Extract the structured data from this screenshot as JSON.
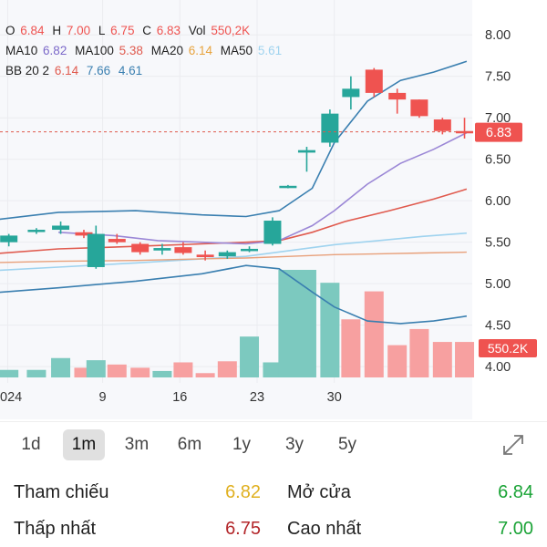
{
  "legend": {
    "ohlc": [
      {
        "label": "O",
        "value": "6.84"
      },
      {
        "label": "H",
        "value": "7.00"
      },
      {
        "label": "L",
        "value": "6.75"
      },
      {
        "label": "C",
        "value": "6.83"
      },
      {
        "label": "Vol",
        "value": "550,2K"
      }
    ],
    "ma": [
      {
        "label": "MA10",
        "value": "6.82",
        "color": "#7b68c9"
      },
      {
        "label": "MA100",
        "value": "5.38",
        "color": "#e05a4e"
      },
      {
        "label": "MA20",
        "value": "6.14",
        "color": "#e8a33d"
      },
      {
        "label": "MA50",
        "value": "5.61",
        "color": "#9fd3ef"
      }
    ],
    "bb_label": "BB 20 2",
    "bb": [
      {
        "value": "6.14",
        "color": "#e05a4e"
      },
      {
        "value": "7.66",
        "color": "#3a7fb0"
      },
      {
        "value": "4.61",
        "color": "#3a7fb0"
      }
    ]
  },
  "ranges": {
    "items": [
      "1d",
      "1m",
      "3m",
      "6m",
      "1y",
      "3y",
      "5y"
    ],
    "active": "1m"
  },
  "stats": {
    "reference": {
      "label": "Tham chiếu",
      "value": "6.82",
      "color": "#e0b020"
    },
    "open": {
      "label": "Mở cửa",
      "value": "6.84",
      "color": "#1aa336"
    },
    "low": {
      "label": "Thấp nhất",
      "value": "6.75",
      "color": "#b3262a"
    },
    "high": {
      "label": "Cao nhất",
      "value": "7.00",
      "color": "#1aa336"
    }
  },
  "colors": {
    "up": "#26a69a",
    "down": "#ef5350",
    "up_vol": "#7cc9bf",
    "down_vol": "#f7a0a0",
    "bb": "#3a7fb0"
  },
  "chart_data": {
    "type": "candlestick",
    "yticks": [
      4.0,
      4.5,
      5.0,
      5.5,
      6.0,
      6.5,
      7.0,
      7.5,
      8.0
    ],
    "ylim": [
      3.87,
      8.2
    ],
    "xticks": [
      {
        "label": "024",
        "day": 0.4
      },
      {
        "label": "9",
        "day": 9
      },
      {
        "label": "16",
        "day": 16
      },
      {
        "label": "23",
        "day": 23
      },
      {
        "label": "30",
        "day": 30
      }
    ],
    "last_price": {
      "value": 6.83,
      "label": "6.83"
    },
    "last_volume": {
      "label": "550.2K"
    },
    "candles": [
      {
        "day": 0.5,
        "o": 5.5,
        "h": 5.6,
        "l": 5.45,
        "c": 5.58
      },
      {
        "day": 3,
        "o": 5.63,
        "h": 5.67,
        "l": 5.6,
        "c": 5.65
      },
      {
        "day": 5.2,
        "o": 5.65,
        "h": 5.75,
        "l": 5.6,
        "c": 5.7
      },
      {
        "day": 7.3,
        "o": 5.62,
        "h": 5.65,
        "l": 5.55,
        "c": 5.58
      },
      {
        "day": 8.4,
        "o": 5.2,
        "h": 5.7,
        "l": 5.18,
        "c": 5.6
      },
      {
        "day": 10.3,
        "o": 5.54,
        "h": 5.6,
        "l": 5.48,
        "c": 5.5
      },
      {
        "day": 12.4,
        "o": 5.48,
        "h": 5.5,
        "l": 5.35,
        "c": 5.38
      },
      {
        "day": 14.4,
        "o": 5.4,
        "h": 5.48,
        "l": 5.35,
        "c": 5.43
      },
      {
        "day": 16.3,
        "o": 5.44,
        "h": 5.5,
        "l": 5.35,
        "c": 5.37
      },
      {
        "day": 18.3,
        "o": 5.35,
        "h": 5.4,
        "l": 5.28,
        "c": 5.32
      },
      {
        "day": 20.3,
        "o": 5.33,
        "h": 5.4,
        "l": 5.3,
        "c": 5.38
      },
      {
        "day": 22.3,
        "o": 5.4,
        "h": 5.45,
        "l": 5.38,
        "c": 5.42
      },
      {
        "day": 24.4,
        "o": 5.48,
        "h": 5.8,
        "l": 5.46,
        "c": 5.76
      },
      {
        "day": 25.8,
        "o": 6.17,
        "h": 6.19,
        "l": 6.15,
        "c": 6.18
      },
      {
        "day": 27.5,
        "o": 6.58,
        "h": 6.65,
        "l": 6.35,
        "c": 6.61
      },
      {
        "day": 29.6,
        "o": 6.7,
        "h": 7.1,
        "l": 6.65,
        "c": 7.05
      },
      {
        "day": 31.5,
        "o": 7.25,
        "h": 7.5,
        "l": 7.1,
        "c": 7.35
      },
      {
        "day": 33.6,
        "o": 7.58,
        "h": 7.6,
        "l": 7.25,
        "c": 7.3
      },
      {
        "day": 35.7,
        "o": 7.3,
        "h": 7.35,
        "l": 7.05,
        "c": 7.22
      },
      {
        "day": 37.7,
        "o": 7.22,
        "h": 7.22,
        "l": 7.0,
        "c": 7.02
      },
      {
        "day": 39.8,
        "o": 6.98,
        "h": 7.0,
        "l": 6.8,
        "c": 6.84
      },
      {
        "day": 41.8,
        "o": 6.84,
        "h": 7.0,
        "l": 6.75,
        "c": 6.83
      }
    ],
    "volumes": [
      {
        "day": 0.5,
        "v": 0.07,
        "up": true
      },
      {
        "day": 3,
        "v": 0.07,
        "up": true
      },
      {
        "day": 5.2,
        "v": 0.18,
        "up": true
      },
      {
        "day": 7.3,
        "v": 0.09,
        "up": false
      },
      {
        "day": 8.4,
        "v": 0.16,
        "up": true
      },
      {
        "day": 10.3,
        "v": 0.12,
        "up": false
      },
      {
        "day": 12.4,
        "v": 0.09,
        "up": false
      },
      {
        "day": 14.4,
        "v": 0.06,
        "up": true
      },
      {
        "day": 16.3,
        "v": 0.14,
        "up": false
      },
      {
        "day": 18.3,
        "v": 0.04,
        "up": false
      },
      {
        "day": 20.3,
        "v": 0.15,
        "up": false
      },
      {
        "day": 22.3,
        "v": 0.38,
        "up": true
      },
      {
        "day": 24.4,
        "v": 0.14,
        "up": true
      },
      {
        "day": 25.8,
        "v": 1.0,
        "up": true
      },
      {
        "day": 27.5,
        "v": 1.0,
        "up": true
      },
      {
        "day": 29.6,
        "v": 0.88,
        "up": true
      },
      {
        "day": 31.5,
        "v": 0.54,
        "up": false
      },
      {
        "day": 33.6,
        "v": 0.8,
        "up": false
      },
      {
        "day": 35.7,
        "v": 0.3,
        "up": false
      },
      {
        "day": 37.7,
        "v": 0.45,
        "up": false
      },
      {
        "day": 39.8,
        "v": 0.33,
        "up": false
      },
      {
        "day": 41.8,
        "v": 0.33,
        "up": false
      }
    ],
    "lines": {
      "bb_upper": [
        [
          -2,
          5.75
        ],
        [
          5,
          5.86
        ],
        [
          12,
          5.88
        ],
        [
          18,
          5.83
        ],
        [
          22,
          5.81
        ],
        [
          25,
          5.88
        ],
        [
          28,
          6.15
        ],
        [
          30,
          6.7
        ],
        [
          33,
          7.2
        ],
        [
          36,
          7.45
        ],
        [
          39,
          7.55
        ],
        [
          42,
          7.68
        ]
      ],
      "bb_lower": [
        [
          -2,
          4.88
        ],
        [
          5,
          4.95
        ],
        [
          12,
          5.03
        ],
        [
          18,
          5.12
        ],
        [
          22,
          5.22
        ],
        [
          25,
          5.18
        ],
        [
          28,
          4.9
        ],
        [
          30,
          4.72
        ],
        [
          33,
          4.55
        ],
        [
          36,
          4.52
        ],
        [
          39,
          4.55
        ],
        [
          42,
          4.61
        ]
      ],
      "ma10": [
        [
          5,
          5.62
        ],
        [
          10,
          5.58
        ],
        [
          14,
          5.52
        ],
        [
          18,
          5.5
        ],
        [
          22,
          5.48
        ],
        [
          25,
          5.52
        ],
        [
          28,
          5.7
        ],
        [
          30,
          5.88
        ],
        [
          33,
          6.2
        ],
        [
          36,
          6.45
        ],
        [
          39,
          6.62
        ],
        [
          42,
          6.82
        ]
      ],
      "ma20": [
        [
          -2,
          5.35
        ],
        [
          5,
          5.42
        ],
        [
          12,
          5.45
        ],
        [
          18,
          5.48
        ],
        [
          22,
          5.5
        ],
        [
          25,
          5.52
        ],
        [
          28,
          5.62
        ],
        [
          31,
          5.75
        ],
        [
          35,
          5.88
        ],
        [
          39,
          6.02
        ],
        [
          42,
          6.14
        ]
      ],
      "ma50": [
        [
          -2,
          5.15
        ],
        [
          5,
          5.2
        ],
        [
          12,
          5.25
        ],
        [
          18,
          5.3
        ],
        [
          22,
          5.33
        ],
        [
          26,
          5.4
        ],
        [
          30,
          5.47
        ],
        [
          34,
          5.52
        ],
        [
          38,
          5.57
        ],
        [
          42,
          5.61
        ]
      ],
      "ma100": [
        [
          -2,
          5.25
        ],
        [
          5,
          5.27
        ],
        [
          12,
          5.28
        ],
        [
          18,
          5.3
        ],
        [
          22,
          5.31
        ],
        [
          26,
          5.33
        ],
        [
          30,
          5.35
        ],
        [
          34,
          5.36
        ],
        [
          38,
          5.37
        ],
        [
          42,
          5.38
        ]
      ]
    }
  }
}
